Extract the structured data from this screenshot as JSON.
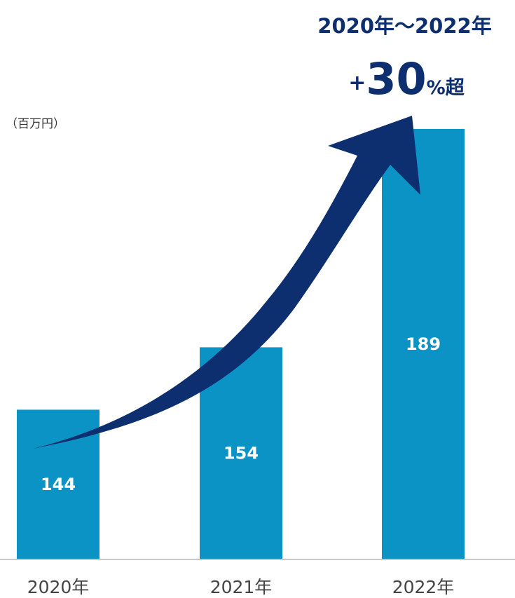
{
  "chart_data": {
    "type": "bar",
    "unit_label": "（百万円）",
    "categories": [
      "2020年",
      "2021年",
      "2022年"
    ],
    "values": [
      144,
      154,
      189
    ],
    "data_labels": [
      "144",
      "154",
      "189"
    ],
    "ylim": [
      120,
      190
    ],
    "grid": false,
    "annotation": {
      "period": "2020年～2022年",
      "sign": "+",
      "number": "30",
      "suffix": "%超"
    },
    "colors": {
      "bar": "#0a93c4",
      "arrow": "#0d2f70",
      "baseline": "#c8c8c8",
      "tick_label": "#444444",
      "data_label": "#ffffff"
    }
  }
}
